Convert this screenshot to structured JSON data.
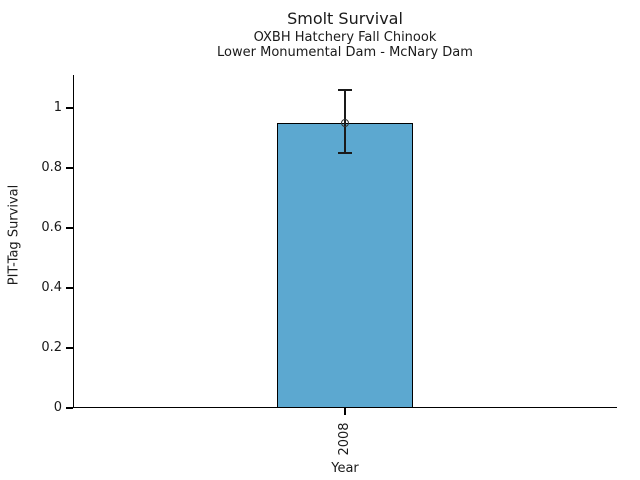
{
  "chart_data": {
    "type": "bar",
    "title": "Smolt Survival",
    "subtitles": [
      "OXBH Hatchery Fall Chinook",
      "Lower Monumental Dam - McNary Dam"
    ],
    "xlabel": "Year",
    "ylabel": "PIT-Tag Survival",
    "categories": [
      "2008"
    ],
    "series": [
      {
        "name": "PIT-Tag Survival",
        "values": [
          0.95
        ],
        "error_low": [
          0.85
        ],
        "error_high": [
          1.06
        ]
      }
    ],
    "yticks": [
      0,
      0.2,
      0.4,
      0.6,
      0.8,
      1
    ],
    "ytick_labels": [
      "0",
      "0.2",
      "0.4",
      "0.6",
      "0.8",
      "1"
    ],
    "ylim": [
      0,
      1.11
    ],
    "xtick_rotation": 90,
    "grid": false,
    "legend": false,
    "colors": {
      "bar_fill": "#5CA8D0",
      "bar_edge": "#000000",
      "error_bar": "#1a1a1a",
      "marker_edge": "#333333",
      "axis": "#000000",
      "background": "#ffffff"
    }
  }
}
